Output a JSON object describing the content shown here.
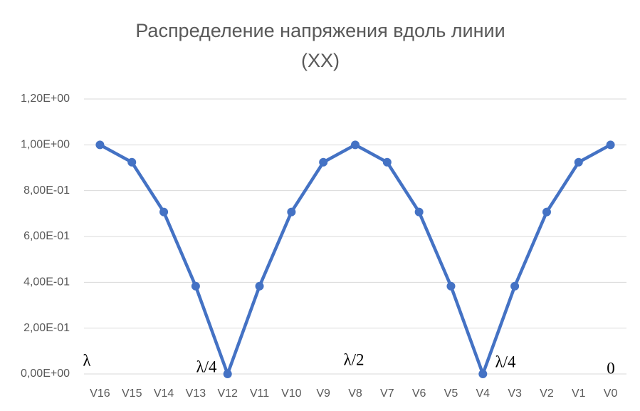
{
  "chart_data": {
    "type": "line",
    "title": "Распределение напряжения вдоль линии (XX)",
    "categories": [
      "V16",
      "V15",
      "V14",
      "V13",
      "V12",
      "V11",
      "V10",
      "V9",
      "V8",
      "V7",
      "V6",
      "V5",
      "V4",
      "V3",
      "V2",
      "V1",
      "V0"
    ],
    "series": [
      {
        "name": "V",
        "color": "#4472c4",
        "values": [
          1,
          0.924,
          0.707,
          0.383,
          0,
          0.383,
          0.707,
          0.924,
          1,
          0.924,
          0.707,
          0.383,
          0,
          0.383,
          0.707,
          0.924,
          1
        ]
      }
    ],
    "ylim": [
      0,
      1.2
    ],
    "yticks": [
      {
        "value": 0,
        "label": "0,00E+00"
      },
      {
        "value": 0.2,
        "label": "2,00E-01"
      },
      {
        "value": 0.4,
        "label": "4,00E-01"
      },
      {
        "value": 0.6,
        "label": "6,00E-01"
      },
      {
        "value": 0.8,
        "label": "8,00E-01"
      },
      {
        "value": 1,
        "label": "1,00E+00"
      },
      {
        "value": 1.2,
        "label": "1,20E+00"
      }
    ],
    "grid": true,
    "annotations": [
      "λ",
      "λ/4",
      "λ/2",
      "λ/4",
      "0"
    ]
  }
}
